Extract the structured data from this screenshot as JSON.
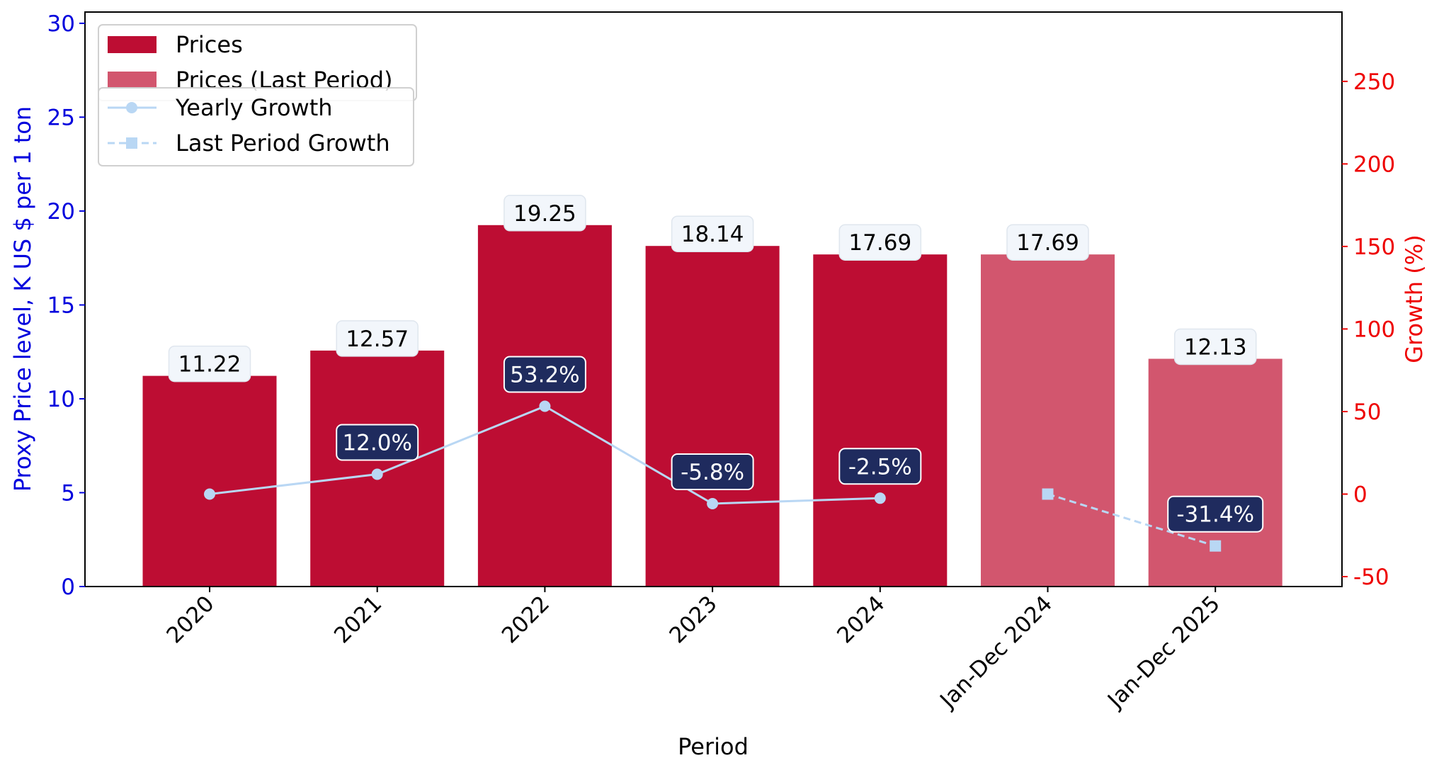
{
  "chart_data": {
    "type": "bar",
    "categories": [
      "2020",
      "2021",
      "2022",
      "2023",
      "2024",
      "Jan-Dec 2024",
      "Jan-Dec 2025"
    ],
    "series": [
      {
        "name": "Prices",
        "kind": "bar",
        "values": [
          11.22,
          12.57,
          19.25,
          18.14,
          17.69,
          null,
          null
        ],
        "color": "#BD0D33"
      },
      {
        "name": "Prices (Last Period)",
        "kind": "bar",
        "values": [
          null,
          null,
          null,
          null,
          null,
          17.69,
          12.13
        ],
        "color": "#D2566E"
      },
      {
        "name": "Yearly Growth",
        "kind": "line",
        "axis": "right",
        "values": [
          0,
          12.0,
          53.2,
          -5.8,
          -2.5,
          null,
          null
        ],
        "color": "#B9D7F4",
        "marker": "circle",
        "linestyle": "solid"
      },
      {
        "name": "Last Period Growth",
        "kind": "line",
        "axis": "right",
        "values": [
          null,
          null,
          null,
          null,
          null,
          0,
          -31.4
        ],
        "color": "#B9D7F4",
        "marker": "square",
        "linestyle": "dashed"
      }
    ],
    "bar_labels": [
      "11.22",
      "12.57",
      "19.25",
      "18.14",
      "17.69",
      "17.69",
      "12.13"
    ],
    "growth_labels": [
      null,
      "12.0%",
      "53.2%",
      "-5.8%",
      "-2.5%",
      null,
      "-31.4%"
    ],
    "xlabel": "Period",
    "ylabel": "Proxy Price level, K US $ per 1 ton",
    "y2label": "Growth (%)",
    "ylim": [
      0,
      30.6
    ],
    "y2lim": [
      -56,
      292
    ],
    "yticks": [
      0,
      5,
      10,
      15,
      20,
      25,
      30
    ],
    "y2ticks": [
      -50,
      0,
      50,
      100,
      150,
      200,
      250
    ],
    "grid": false,
    "legend_placement": "top-left",
    "colors": {
      "left_axis": "#0000DD",
      "right_axis": "#EE0000",
      "growth_box": "#1F2B5E",
      "value_box": "#F2F6FB"
    }
  }
}
